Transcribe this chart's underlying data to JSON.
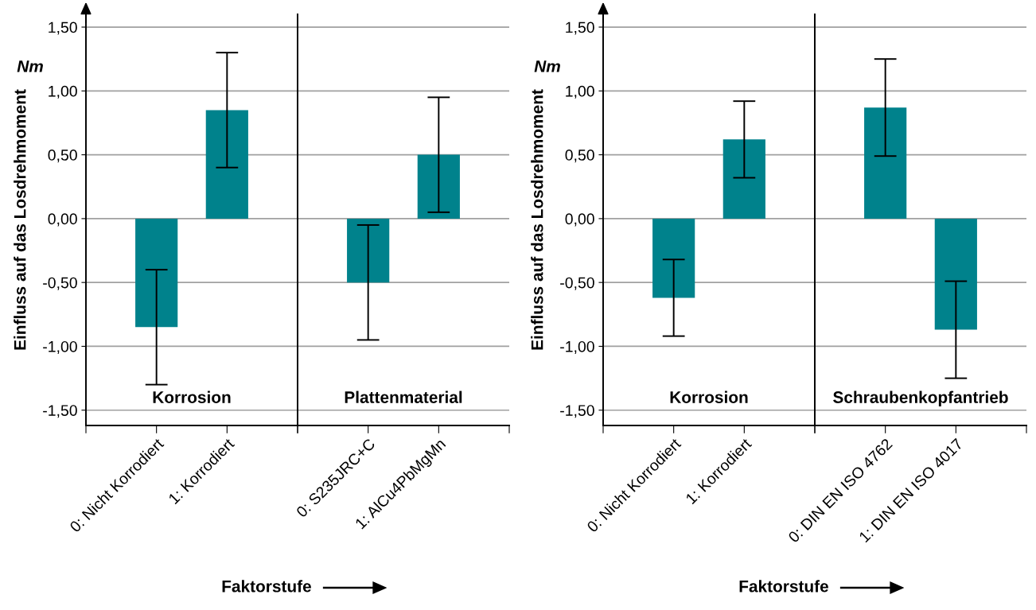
{
  "chart_data": [
    {
      "type": "bar",
      "categories": [
        "0: Nicht Korrodiert",
        "1: Korrodiert"
      ],
      "values": [
        -0.85,
        0.85
      ],
      "errors": [
        0.45,
        0.45
      ],
      "color": "#00828c",
      "ylabel": "Einfluss auf das Losdrehmoment",
      "xlabel": "Faktorstufe",
      "annotations": [
        "Korrosion",
        "Nm"
      ],
      "ylim": [
        -1.62,
        1.6
      ],
      "yticks": [
        {
          "value": -1.5,
          "label": "-1,50"
        },
        {
          "value": -1.0,
          "label": "-1,00"
        },
        {
          "value": -0.5,
          "label": "-0,50"
        },
        {
          "value": 0,
          "label": "0,00"
        },
        {
          "value": 0.5,
          "label": "0,50"
        },
        {
          "value": 1.0,
          "label": "1,00"
        },
        {
          "value": 1.5,
          "label": "1,50"
        }
      ],
      "grid": "y"
    },
    {
      "type": "bar",
      "categories": [
        "0: S235JRC+C",
        "1: AlCu4PbMgMn"
      ],
      "values": [
        -0.5,
        0.5
      ],
      "errors": [
        0.45,
        0.45
      ],
      "color": "#00828c",
      "annotations": [
        "Plattenmaterial"
      ],
      "ylim": [
        -1.62,
        1.6
      ],
      "tick_labels": "x",
      "grid": "y"
    },
    {
      "type": "bar",
      "categories": [
        "0: Nicht Korrodiert",
        "1: Korrodiert"
      ],
      "values": [
        -0.62,
        0.62
      ],
      "errors": [
        0.3,
        0.3
      ],
      "color": "#00828c",
      "ylabel": "Einfluss auf das Losdrehmoment",
      "xlabel": "Faktorstufe",
      "annotations": [
        "Korrosion",
        "Nm"
      ],
      "ylim": [
        -1.62,
        1.6
      ],
      "yticks": [
        {
          "value": -1.5,
          "label": "-1,50"
        },
        {
          "value": -1.0,
          "label": "-1,00"
        },
        {
          "value": -0.5,
          "label": "-0,50"
        },
        {
          "value": 0,
          "label": "0,00"
        },
        {
          "value": 0.5,
          "label": "0,50"
        },
        {
          "value": 1.0,
          "label": "1,00"
        },
        {
          "value": 1.5,
          "label": "1,50"
        }
      ],
      "grid": "y"
    },
    {
      "type": "bar",
      "categories": [
        "0: DIN EN ISO 4762",
        "1: DIN EN ISO 4017"
      ],
      "values": [
        0.87,
        -0.87
      ],
      "errors": [
        0.38,
        0.38
      ],
      "color": "#00828c",
      "annotations": [
        "Schraubenkopfantrieb"
      ],
      "ylim": [
        -1.62,
        1.6
      ],
      "tick_labels": "x",
      "grid": "y"
    }
  ]
}
